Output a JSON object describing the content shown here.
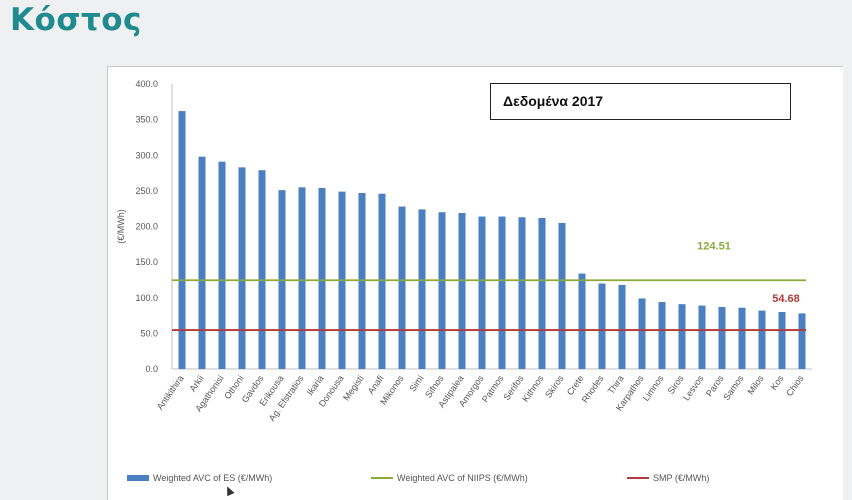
{
  "slide": {
    "title": "Κόστος"
  },
  "badge": {
    "text": "Δεδομένα 2017"
  },
  "chart_data": {
    "type": "bar",
    "ylabel": "(€/MWh)",
    "ylim": [
      0,
      400
    ],
    "yticks": [
      "0.0",
      "50.0",
      "100.0",
      "150.0",
      "200.0",
      "250.0",
      "300.0",
      "350.0",
      "400.0"
    ],
    "grid": false,
    "legend_position": "bottom",
    "categories": [
      "Antikithira",
      "Arkii",
      "Agathonisi",
      "Othoni",
      "Gavdos",
      "Erikousa",
      "Ag. Efstratios",
      "Ikaria",
      "Donousa",
      "Megisti",
      "Anafi",
      "Mikonos",
      "Simi",
      "Sifnos",
      "Astipalea",
      "Amorgos",
      "Patmos",
      "Serifos",
      "Kithnos",
      "Skiros",
      "Crete",
      "Rhodes",
      "Thira",
      "Karpathos",
      "Limnos",
      "Siros",
      "Lesvos",
      "Paros",
      "Samos",
      "Milos",
      "Kos",
      "Chios"
    ],
    "series": [
      {
        "name": "Weighted AVC of ES (€/MWh)",
        "type": "bar",
        "color": "#4a7fc1",
        "values": [
          362,
          298,
          291,
          283,
          279,
          251,
          255,
          254,
          249,
          247,
          246,
          228,
          224,
          220,
          219,
          214,
          214,
          213,
          212,
          205,
          134,
          120,
          118,
          99,
          94,
          91,
          89,
          87,
          86,
          82,
          80,
          78
        ]
      },
      {
        "name": "Weighted AVC of NIIPS (€/MWh)",
        "type": "line",
        "color": "#8aab3c",
        "value": 124.51,
        "label": "124.51"
      },
      {
        "name": "SMP (€/MWh)",
        "type": "line",
        "color": "#b33a3a",
        "value": 54.68,
        "label": "54.68"
      }
    ]
  }
}
